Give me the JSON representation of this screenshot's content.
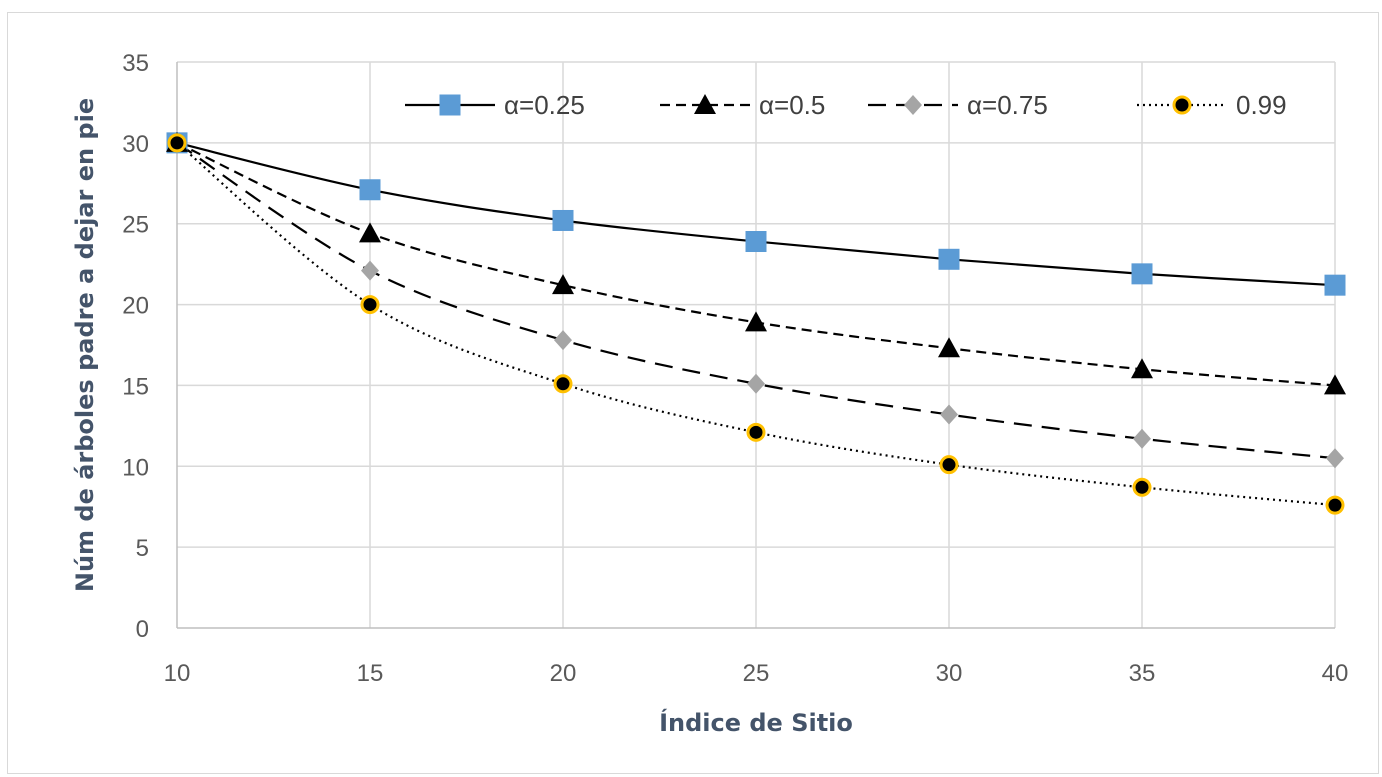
{
  "chart_data": {
    "type": "line",
    "title": "",
    "xlabel": "Índice de Sitio",
    "ylabel": "Núm de árboles padre a dejar en pie",
    "x": [
      10,
      15,
      20,
      25,
      30,
      35,
      40
    ],
    "xlim": [
      10,
      40
    ],
    "ylim": [
      0,
      35
    ],
    "xticks": [
      "10",
      "15",
      "20",
      "25",
      "30",
      "35",
      "40"
    ],
    "yticks": [
      "0",
      "5",
      "10",
      "15",
      "20",
      "25",
      "30",
      "35"
    ],
    "grid": true,
    "legend_position": "top-right",
    "series": [
      {
        "name": "α=0.25",
        "values": [
          30,
          27.1,
          25.2,
          23.9,
          22.8,
          21.9,
          21.2
        ],
        "line_style": "solid",
        "marker": "square",
        "marker_color": "#5b9bd5",
        "line_color": "#000000"
      },
      {
        "name": "α=0.5",
        "values": [
          30,
          24.4,
          21.2,
          18.9,
          17.3,
          16.0,
          15.0
        ],
        "line_style": "dashed",
        "marker": "triangle",
        "marker_color": "#000000",
        "line_color": "#000000"
      },
      {
        "name": "α=0.75",
        "values": [
          30,
          22.1,
          17.8,
          15.1,
          13.2,
          11.7,
          10.5
        ],
        "line_style": "long-dashed",
        "marker": "diamond",
        "marker_color": "#a5a5a5",
        "line_color": "#000000"
      },
      {
        "name": "0.99",
        "values": [
          30,
          20.0,
          15.1,
          12.1,
          10.1,
          8.7,
          7.6
        ],
        "line_style": "dotted",
        "marker": "circle",
        "marker_color": "#000000",
        "marker_edge_color": "#ffc000",
        "line_color": "#000000"
      }
    ]
  }
}
